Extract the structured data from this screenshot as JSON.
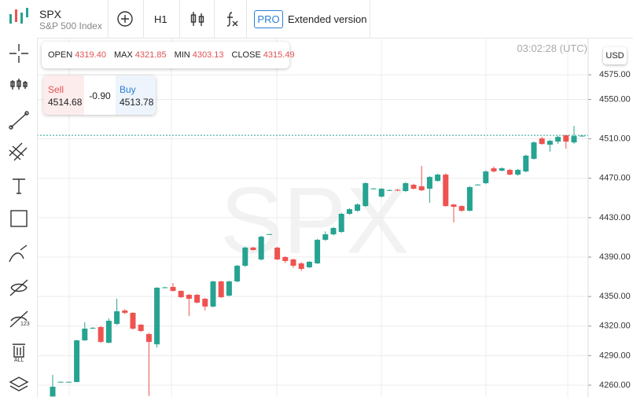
{
  "toolbar": {
    "symbol": "SPX",
    "description": "S&P 500 Index",
    "timeframe": "H1",
    "pro": "PRO",
    "extended": "Extended version"
  },
  "chart_data": {
    "type": "candlestick",
    "ohlc_info": [
      {
        "label": "OPEN",
        "value": "4319.40"
      },
      {
        "label": "MAX",
        "value": "4321.85"
      },
      {
        "label": "MIN",
        "value": "4303.13"
      },
      {
        "label": "CLOSE",
        "value": "4315.49"
      }
    ],
    "trade": {
      "sell_label": "Sell",
      "sell": "4514.68",
      "spread": "-0.90",
      "buy_label": "Buy",
      "buy": "4513.78"
    },
    "time": "03:02:28 (UTC)",
    "currency": "USD",
    "watermark": "SPX",
    "up_color": "#26a391",
    "down_color": "#ef5350",
    "open": [
      4248.5,
      4263.2,
      4263.2,
      4263.2,
      4305.5,
      4317.4,
      4319.0,
      4303.1,
      4322.2,
      4335.8,
      4333.4,
      4321.4,
      4311.9,
      4301.5,
      4359.0,
      4359.7,
      4355.7,
      4351.7,
      4351.7,
      4347.7,
      4339.8,
      4365.3,
      4350.9,
      4365.3,
      4381.2,
      4399.6,
      4387.6,
      4413.1,
      4399.6,
      4390.0,
      4387.6,
      4383.6,
      4379.6,
      4383.6,
      4407.5,
      4413.1,
      4415.5,
      4433.9,
      4437.0,
      4441.8,
      4459.4,
      4451.4,
      4457.8,
      4458.2,
      4457.0,
      4463.4,
      4461.8,
      4459.4,
      4467.3,
      4473.7,
      4443.4,
      4441.8,
      4437.0,
      4463.4,
      4465.0,
      4480.1,
      4477.7,
      4478.5,
      4473.7,
      4476.9,
      4489.7,
      4510.4,
      4504.0,
      4507.2,
      4513.6,
      4506.4,
      4513.0
    ],
    "high": [
      4270.4,
      4263.5,
      4263.5,
      4306.0,
      4323.8,
      4319.0,
      4320.0,
      4327.8,
      4347.7,
      4337.0,
      4334.0,
      4322.0,
      4313.0,
      4359.5,
      4360.0,
      4363.7,
      4356.0,
      4352.5,
      4352.5,
      4348.5,
      4366.0,
      4366.0,
      4366.0,
      4382.0,
      4400.5,
      4400.5,
      4411.5,
      4413.5,
      4400.5,
      4391.0,
      4388.5,
      4385.0,
      4386.0,
      4408.5,
      4416.0,
      4420.5,
      4435.0,
      4439.5,
      4444.5,
      4466.0,
      4460.0,
      4460.0,
      4458.5,
      4459.0,
      4466.0,
      4464.5,
      4482.5,
      4472.0,
      4474.5,
      4475.0,
      4444.0,
      4442.5,
      4462.0,
      4464.0,
      4478.0,
      4482.0,
      4481.0,
      4479.5,
      4479.5,
      4494.0,
      4507.5,
      4512.0,
      4509.0,
      4513.0,
      4514.0,
      4523.2,
      4513.6
    ],
    "low": [
      4248.5,
      4263.0,
      4263.0,
      4263.0,
      4305.0,
      4317.0,
      4303.0,
      4302.5,
      4321.0,
      4332.0,
      4316.0,
      4314.0,
      4249.0,
      4298.3,
      4358.5,
      4355.0,
      4348.5,
      4330.2,
      4343.0,
      4335.8,
      4339.0,
      4348.5,
      4350.0,
      4364.5,
      4380.0,
      4396.5,
      4386.5,
      4412.8,
      4387.0,
      4384.0,
      4379.0,
      4376.0,
      4379.0,
      4383.0,
      4406.5,
      4412.0,
      4414.5,
      4433.0,
      4436.0,
      4441.0,
      4459.0,
      4450.5,
      4457.0,
      4457.0,
      4456.0,
      4458.5,
      4457.0,
      4445.0,
      4466.5,
      4441.0,
      4425.1,
      4436.0,
      4436.5,
      4463.0,
      4464.0,
      4476.0,
      4477.0,
      4473.0,
      4472.5,
      4476.0,
      4489.0,
      4504.0,
      4497.0,
      4505.0,
      4500.0,
      4505.0,
      4512.6
    ],
    "close": [
      4258.4,
      4263.4,
      4263.4,
      4305.5,
      4317.4,
      4318.2,
      4303.9,
      4325.4,
      4335.0,
      4333.4,
      4317.4,
      4315.0,
      4303.9,
      4358.9,
      4359.3,
      4355.7,
      4349.3,
      4347.7,
      4343.8,
      4339.8,
      4365.3,
      4349.3,
      4365.3,
      4381.2,
      4399.6,
      4397.2,
      4410.7,
      4413.3,
      4387.6,
      4386.0,
      4381.2,
      4378.0,
      4385.2,
      4407.5,
      4413.1,
      4419.5,
      4433.9,
      4438.6,
      4443.4,
      4465.0,
      4459.6,
      4459.4,
      4458.0,
      4457.8,
      4465.0,
      4459.4,
      4457.8,
      4471.3,
      4473.7,
      4441.8,
      4441.0,
      4437.0,
      4461.0,
      4463.6,
      4476.9,
      4476.9,
      4480.1,
      4473.7,
      4478.5,
      4492.9,
      4506.4,
      4504.8,
      4508.0,
      4512.0,
      4507.2,
      4512.8,
      4513.2
    ],
    "price_line": 4513.6,
    "ylim": [
      4248,
      4615
    ],
    "yticks": [
      {
        "value": 4575,
        "label": "4575.00"
      },
      {
        "value": 4550,
        "label": "4550.00"
      },
      {
        "value": 4510,
        "label": "4510.00"
      },
      {
        "value": 4470,
        "label": "4470.00"
      },
      {
        "value": 4430,
        "label": "4430.00"
      },
      {
        "value": 4390,
        "label": "4390.00"
      },
      {
        "value": 4350,
        "label": "4350.00"
      },
      {
        "value": 4320,
        "label": "4320.00"
      },
      {
        "value": 4290,
        "label": "4290.00"
      },
      {
        "value": 4260,
        "label": "4260.00"
      }
    ],
    "grid": true
  }
}
